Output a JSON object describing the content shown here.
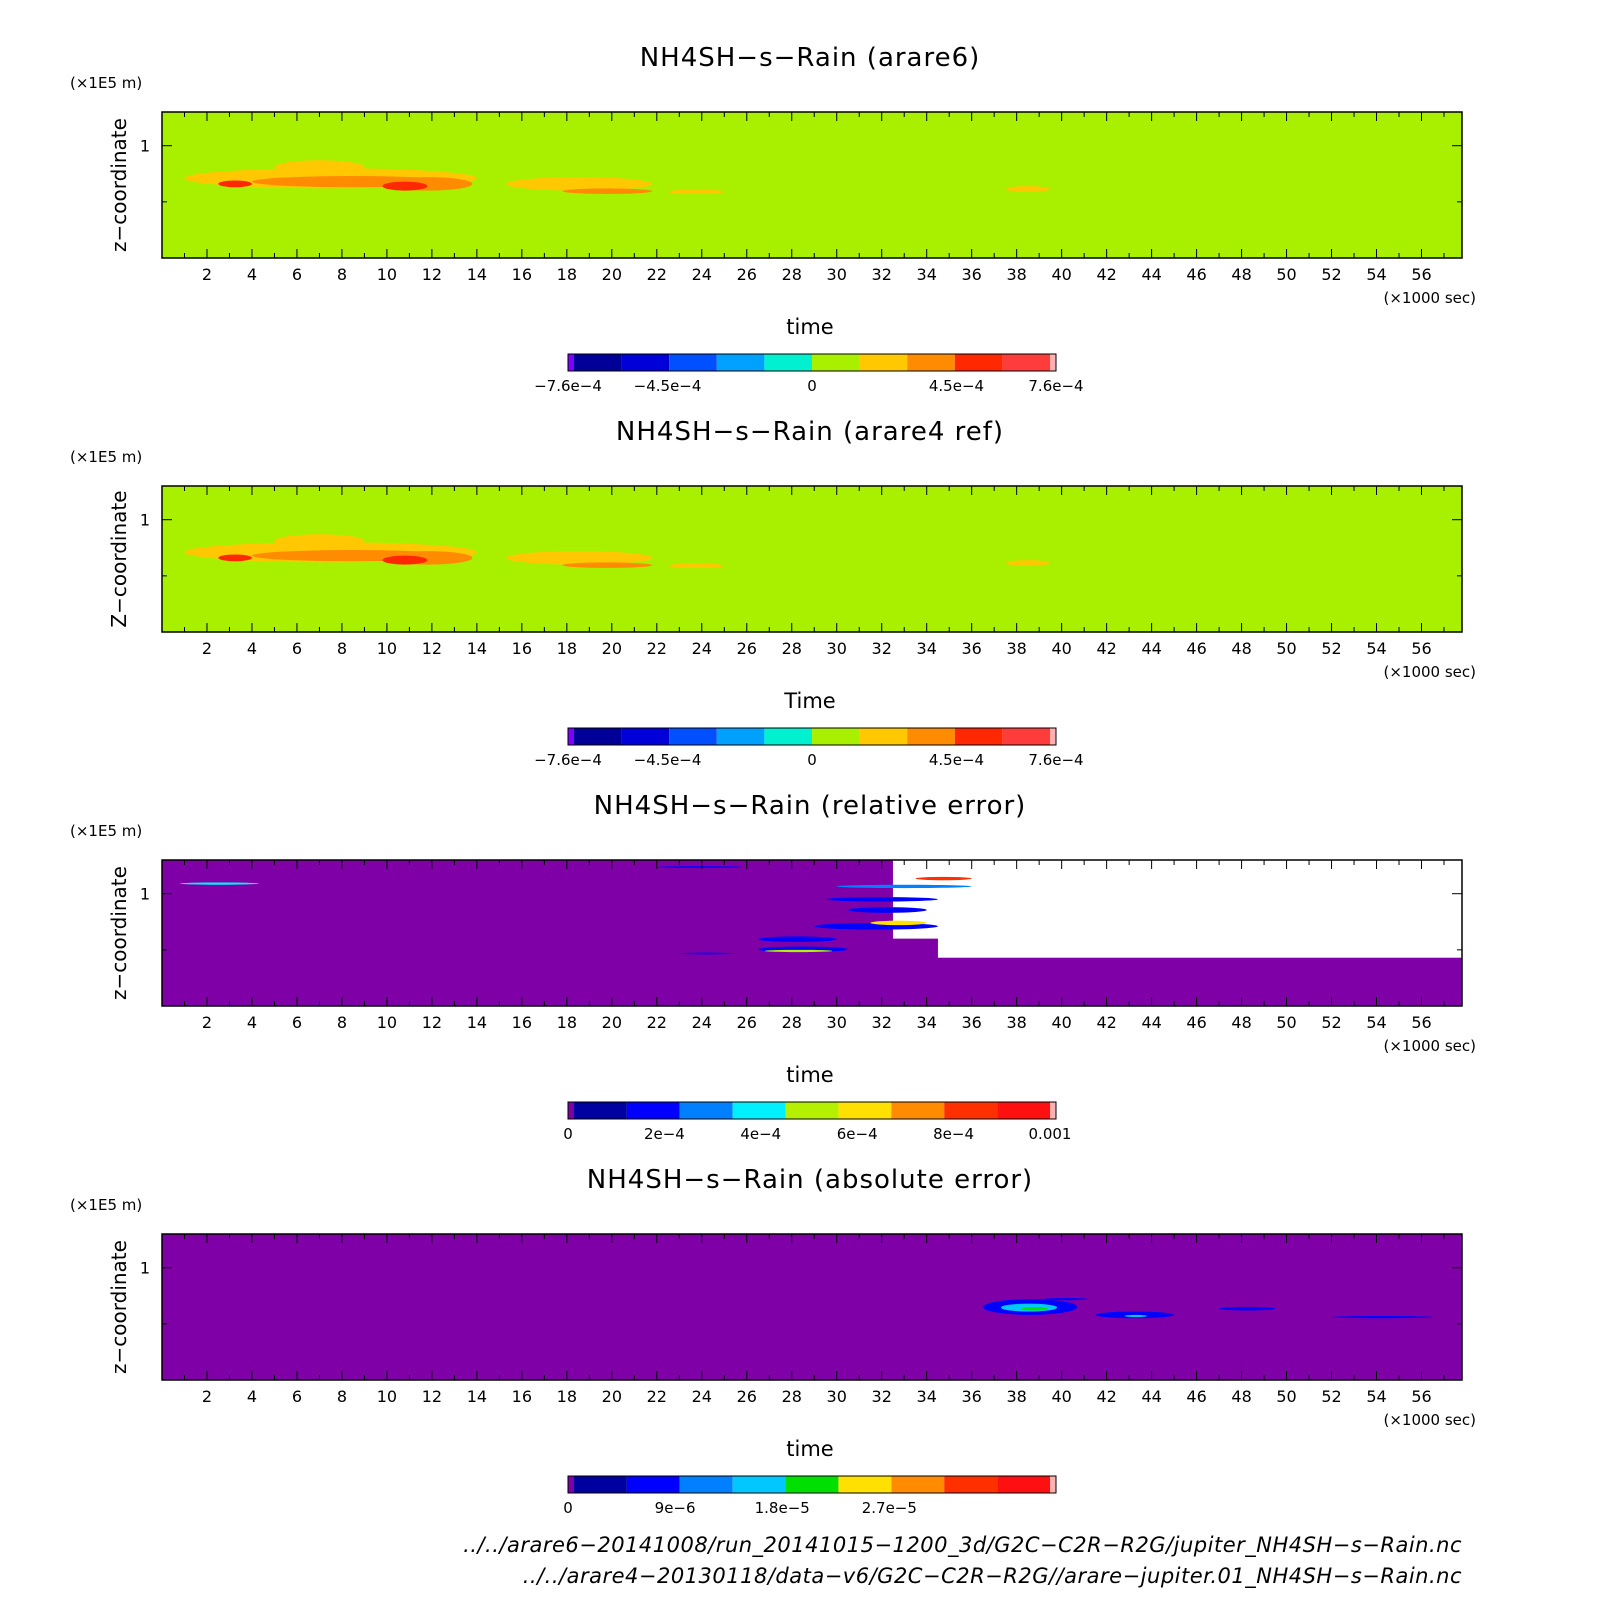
{
  "chart_data": [
    {
      "type": "heatmap",
      "title": "NH4SH−s−Rain (arare6)",
      "xlabel": "time",
      "ylabel": "z−coordinate",
      "x_unit": "(×1000 sec)",
      "y_unit": "(×1E5 m)",
      "xlim": [
        0,
        57.8
      ],
      "ylim": [
        0,
        1.3
      ],
      "x_ticks": [
        2,
        4,
        6,
        8,
        10,
        12,
        14,
        16,
        18,
        20,
        22,
        24,
        26,
        28,
        30,
        32,
        34,
        36,
        38,
        40,
        42,
        44,
        46,
        48,
        50,
        52,
        54,
        56
      ],
      "y_ticks": [
        1
      ],
      "background": "#a8f000",
      "colorbar": {
        "colors": [
          "#8000ff",
          "#000098",
          "#0000d8",
          "#0050ff",
          "#00a0ff",
          "#00f0d0",
          "#a8f000",
          "#ffc800",
          "#ff8c00",
          "#ff2800",
          "#ff3c3c",
          "#ffb0b0"
        ],
        "tick_values": [
          -0.00076,
          -0.00045,
          0,
          0.00045,
          0.00076
        ],
        "tick_labels": [
          "−7.6e−4",
          "−4.5e−4",
          "0",
          "4.5e−4",
          "7.6e−4"
        ]
      },
      "features": [
        {
          "t": 1.0,
          "z": 0.62,
          "w": 13.0,
          "h": 0.18,
          "level": 7
        },
        {
          "t": 5.0,
          "z": 0.75,
          "w": 4.0,
          "h": 0.12,
          "level": 7
        },
        {
          "t": 4.0,
          "z": 0.63,
          "w": 9.0,
          "h": 0.1,
          "level": 8
        },
        {
          "t": 9.8,
          "z": 0.6,
          "w": 4.0,
          "h": 0.12,
          "level": 8
        },
        {
          "t": 2.5,
          "z": 0.63,
          "w": 1.5,
          "h": 0.06,
          "level": 9
        },
        {
          "t": 9.8,
          "z": 0.6,
          "w": 2.0,
          "h": 0.08,
          "level": 9
        },
        {
          "t": 15.3,
          "z": 0.6,
          "w": 6.5,
          "h": 0.12,
          "level": 7
        },
        {
          "t": 17.8,
          "z": 0.57,
          "w": 4.0,
          "h": 0.05,
          "level": 8
        },
        {
          "t": 22.5,
          "z": 0.57,
          "w": 2.5,
          "h": 0.04,
          "level": 7
        },
        {
          "t": 37.5,
          "z": 0.59,
          "w": 2.0,
          "h": 0.05,
          "level": 7
        }
      ]
    },
    {
      "type": "heatmap",
      "title": "NH4SH−s−Rain (arare4 ref)",
      "xlabel": "Time",
      "ylabel": "Z−coordinate",
      "x_unit": "(×1000 sec)",
      "y_unit": "(×1E5 m)",
      "xlim": [
        0,
        57.8
      ],
      "ylim": [
        0,
        1.3
      ],
      "x_ticks": [
        2,
        4,
        6,
        8,
        10,
        12,
        14,
        16,
        18,
        20,
        22,
        24,
        26,
        28,
        30,
        32,
        34,
        36,
        38,
        40,
        42,
        44,
        46,
        48,
        50,
        52,
        54,
        56
      ],
      "y_ticks": [
        1
      ],
      "background": "#a8f000",
      "colorbar": {
        "colors": [
          "#8000ff",
          "#000098",
          "#0000d8",
          "#0050ff",
          "#00a0ff",
          "#00f0d0",
          "#a8f000",
          "#ffc800",
          "#ff8c00",
          "#ff2800",
          "#ff3c3c",
          "#ffb0b0"
        ],
        "tick_values": [
          -0.00076,
          -0.00045,
          0,
          0.00045,
          0.00076
        ],
        "tick_labels": [
          "−7.6e−4",
          "−4.5e−4",
          "0",
          "4.5e−4",
          "7.6e−4"
        ]
      },
      "features": [
        {
          "t": 1.0,
          "z": 0.62,
          "w": 13.0,
          "h": 0.18,
          "level": 7
        },
        {
          "t": 5.0,
          "z": 0.75,
          "w": 4.0,
          "h": 0.12,
          "level": 7
        },
        {
          "t": 4.0,
          "z": 0.63,
          "w": 9.0,
          "h": 0.1,
          "level": 8
        },
        {
          "t": 9.8,
          "z": 0.6,
          "w": 4.0,
          "h": 0.12,
          "level": 8
        },
        {
          "t": 2.5,
          "z": 0.63,
          "w": 1.5,
          "h": 0.06,
          "level": 9
        },
        {
          "t": 9.8,
          "z": 0.6,
          "w": 2.0,
          "h": 0.08,
          "level": 9
        },
        {
          "t": 15.3,
          "z": 0.6,
          "w": 6.5,
          "h": 0.12,
          "level": 7
        },
        {
          "t": 17.8,
          "z": 0.57,
          "w": 4.0,
          "h": 0.05,
          "level": 8
        },
        {
          "t": 22.5,
          "z": 0.57,
          "w": 2.5,
          "h": 0.04,
          "level": 7
        },
        {
          "t": 37.5,
          "z": 0.59,
          "w": 2.0,
          "h": 0.05,
          "level": 7
        }
      ]
    },
    {
      "type": "heatmap",
      "title": "NH4SH−s−Rain (relative error)",
      "xlabel": "time",
      "ylabel": "z−coordinate",
      "x_unit": "(×1000 sec)",
      "y_unit": "(×1E5 m)",
      "xlim": [
        0,
        57.8
      ],
      "ylim": [
        0,
        1.3
      ],
      "x_ticks": [
        2,
        4,
        6,
        8,
        10,
        12,
        14,
        16,
        18,
        20,
        22,
        24,
        26,
        28,
        30,
        32,
        34,
        36,
        38,
        40,
        42,
        44,
        46,
        48,
        50,
        52,
        54,
        56
      ],
      "y_ticks": [
        1
      ],
      "background": "#8000a8",
      "colorbar": {
        "colors": [
          "#8000a8",
          "#0000a0",
          "#0000ff",
          "#0080ff",
          "#00f0ff",
          "#b4f000",
          "#ffe000",
          "#ff8c00",
          "#ff3000",
          "#ff1010",
          "#ffb0b0"
        ],
        "tick_values": [
          0,
          0.0002,
          0.0004,
          0.0006,
          0.0008,
          0.001
        ],
        "tick_labels": [
          "0",
          "2e−4",
          "4e−4",
          "6e−4",
          "8e−4",
          "0.001"
        ]
      },
      "missing_region": [
        {
          "t": 34.5,
          "z": 0.43,
          "w": 23.3,
          "h": 0.87
        },
        {
          "t": 32.5,
          "z": 0.6,
          "w": 2.5,
          "h": 0.7
        }
      ],
      "features": [
        {
          "t": 0.8,
          "z": 1.08,
          "w": 3.5,
          "h": 0.02,
          "level": 4
        },
        {
          "t": 26.5,
          "z": 0.48,
          "w": 4.0,
          "h": 0.05,
          "level": 2
        },
        {
          "t": 26.8,
          "z": 0.48,
          "w": 3.0,
          "h": 0.02,
          "level": 5
        },
        {
          "t": 26.5,
          "z": 0.57,
          "w": 3.5,
          "h": 0.05,
          "level": 2
        },
        {
          "t": 29.0,
          "z": 0.68,
          "w": 5.5,
          "h": 0.06,
          "level": 2
        },
        {
          "t": 31.5,
          "z": 0.72,
          "w": 2.5,
          "h": 0.04,
          "level": 6
        },
        {
          "t": 30.5,
          "z": 0.83,
          "w": 3.5,
          "h": 0.05,
          "level": 2
        },
        {
          "t": 29.5,
          "z": 0.93,
          "w": 5.0,
          "h": 0.04,
          "level": 2
        },
        {
          "t": 30.0,
          "z": 1.05,
          "w": 6.0,
          "h": 0.03,
          "level": 3
        },
        {
          "t": 33.5,
          "z": 1.12,
          "w": 2.5,
          "h": 0.03,
          "level": 8
        },
        {
          "t": 22.0,
          "z": 1.23,
          "w": 3.8,
          "h": 0.015,
          "level": 2
        },
        {
          "t": 23.0,
          "z": 0.46,
          "w": 2.5,
          "h": 0.015,
          "level": 2
        }
      ]
    },
    {
      "type": "heatmap",
      "title": "NH4SH−s−Rain (absolute error)",
      "xlabel": "time",
      "ylabel": "z−coordinate",
      "x_unit": "(×1000 sec)",
      "y_unit": "(×1E5 m)",
      "xlim": [
        0,
        57.8
      ],
      "ylim": [
        0,
        1.3
      ],
      "x_ticks": [
        2,
        4,
        6,
        8,
        10,
        12,
        14,
        16,
        18,
        20,
        22,
        24,
        26,
        28,
        30,
        32,
        34,
        36,
        38,
        40,
        42,
        44,
        46,
        48,
        50,
        52,
        54,
        56
      ],
      "y_ticks": [
        1
      ],
      "background": "#8000a8",
      "colorbar": {
        "colors": [
          "#8000a8",
          "#0000a0",
          "#0000ff",
          "#0080ff",
          "#00c8ff",
          "#00e000",
          "#ffe000",
          "#ff8c00",
          "#ff3000",
          "#ff1010",
          "#ffb0b0"
        ],
        "tick_values": [
          0,
          9e-06,
          1.8e-05,
          2.7e-05
        ],
        "tick_labels": [
          "0",
          "9e−6",
          "1.8e−5",
          "2.7e−5"
        ]
      },
      "features": [
        {
          "t": 36.5,
          "z": 0.58,
          "w": 4.2,
          "h": 0.14,
          "level": 2
        },
        {
          "t": 37.3,
          "z": 0.61,
          "w": 2.5,
          "h": 0.07,
          "level": 4
        },
        {
          "t": 38.2,
          "z": 0.62,
          "w": 1.2,
          "h": 0.03,
          "level": 5
        },
        {
          "t": 41.5,
          "z": 0.55,
          "w": 3.5,
          "h": 0.06,
          "level": 2
        },
        {
          "t": 42.8,
          "z": 0.56,
          "w": 1.0,
          "h": 0.02,
          "level": 4
        },
        {
          "t": 39.2,
          "z": 0.71,
          "w": 2.0,
          "h": 0.02,
          "level": 2
        },
        {
          "t": 47.0,
          "z": 0.62,
          "w": 2.5,
          "h": 0.03,
          "level": 2
        },
        {
          "t": 52.0,
          "z": 0.55,
          "w": 4.5,
          "h": 0.02,
          "level": 2
        }
      ]
    }
  ],
  "footer_lines": [
    "../../arare6−20141008/run_20141015−1200_3d/G2C−C2R−R2G/jupiter_NH4SH−s−Rain.nc",
    "../../arare4−20130118/data−v6/G2C−C2R−R2G//arare−jupiter.01_NH4SH−s−Rain.nc"
  ]
}
